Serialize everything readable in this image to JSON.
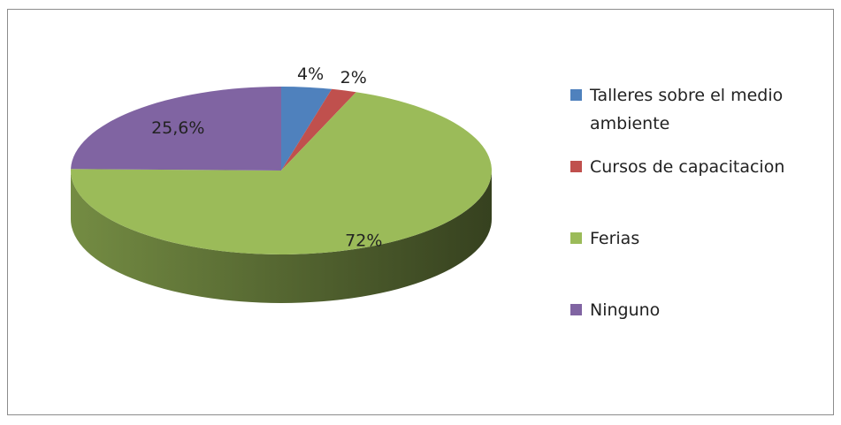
{
  "chart_data": {
    "type": "pie3d",
    "categories": [
      "Talleres sobre el medio ambiente",
      "Cursos de capacitacion",
      "Ferias",
      "Ninguno"
    ],
    "values": [
      4,
      2,
      72,
      25.6
    ],
    "value_labels": [
      "4%",
      "2%",
      "72%",
      "25,6%"
    ],
    "colors": [
      "#4f81bd",
      "#c0504d",
      "#9bbb59",
      "#8064a2"
    ],
    "legend": "right"
  }
}
